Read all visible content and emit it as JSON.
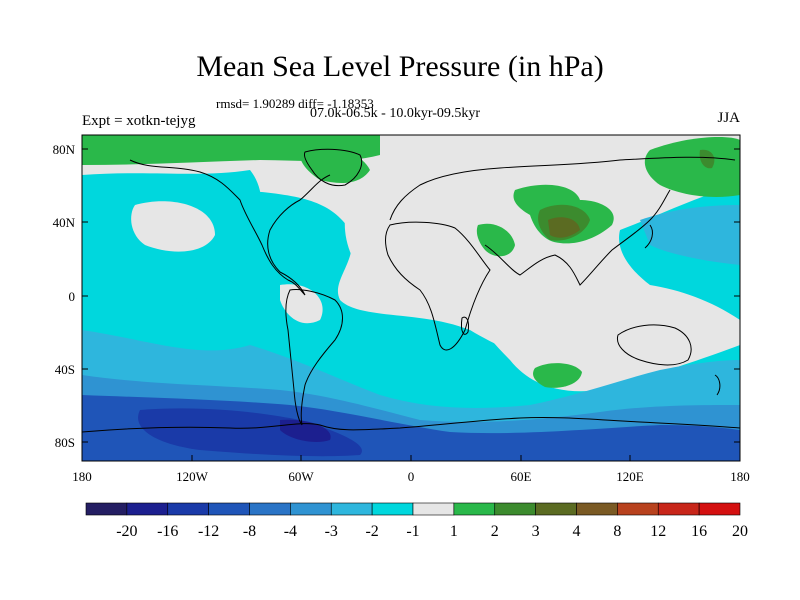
{
  "title": "Mean Sea Level Pressure (in hPa)",
  "stats_line": "rmsd= 1.90289 diff= -1.18353",
  "period_line": "07.0k-06.5k - 10.0kyr-09.5kyr",
  "experiment_label": "Expt = xotkn-tejyg",
  "season_label": "JJA",
  "x_axis": {
    "tick_labels": [
      "180",
      "120W",
      "60W",
      "0",
      "60E",
      "120E",
      "180"
    ]
  },
  "y_axis": {
    "tick_labels": [
      "80N",
      "40N",
      "0",
      "40S",
      "80S"
    ]
  },
  "colorbar": {
    "labels": [
      "-20",
      "-16",
      "-12",
      "-8",
      "-4",
      "-3",
      "-2",
      "-1",
      "1",
      "2",
      "3",
      "4",
      "8",
      "12",
      "16",
      "20"
    ],
    "colors": [
      "#241e63",
      "#1c1f8f",
      "#1a3aa8",
      "#1f55b8",
      "#2a74c6",
      "#2f93d2",
      "#2eb6dd",
      "#00d7dd",
      "#e6e6e6",
      "#2ab84a",
      "#3c8b2e",
      "#5b6b22",
      "#7a5a24",
      "#b8421e",
      "#c8261a",
      "#d41010"
    ]
  }
}
